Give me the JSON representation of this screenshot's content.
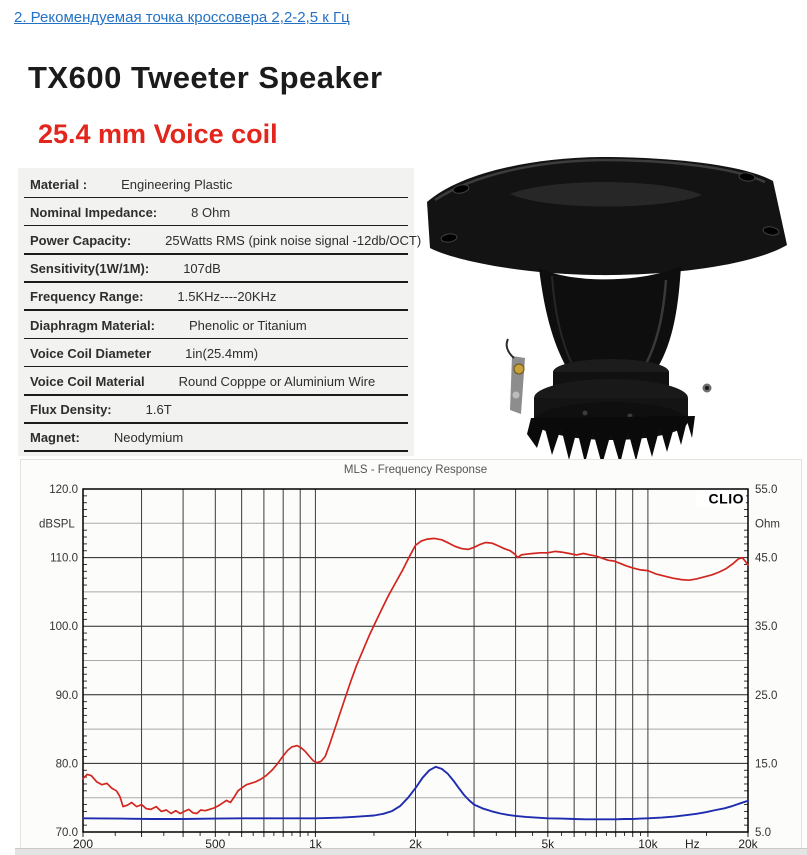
{
  "page": {
    "link": {
      "label": "2. Рекомендуемая точка кроссовера 2,2-2,5 к Гц",
      "color": "#2472c4"
    },
    "title": "TX600 Tweeter Speaker",
    "subtitle": {
      "text": "25.4 mm Voice coil",
      "color": "#e2261c"
    }
  },
  "specs": {
    "rows": [
      {
        "label": "Material :",
        "value": "Engineering Plastic"
      },
      {
        "label": "Nominal Impedance:",
        "value": "8 Ohm"
      },
      {
        "label": "Power Capacity:",
        "value": "25Watts RMS (pink noise signal -12db/OCT)"
      },
      {
        "label": "Sensitivity(1W/1M):",
        "value": "107dB"
      },
      {
        "label": "Frequency Range:",
        "value": "1.5KHz----20KHz"
      },
      {
        "label": "Diaphragm Material:",
        "value": "Phenolic or Titanium"
      },
      {
        "label": "Voice Coil Diameter",
        "value": "1in(25.4mm)"
      },
      {
        "label": "Voice Coil Material",
        "value": "Round Copppe or Aluminium Wire"
      },
      {
        "label": "Flux Density:",
        "value": "1.6T"
      },
      {
        "label": "Magnet:",
        "value": "Neodymium"
      }
    ]
  },
  "chart_data": {
    "type": "line",
    "title": "MLS - Frequency Response",
    "watermark": "CLIO",
    "x_axis": {
      "scale": "log",
      "min": 200,
      "max": 20000,
      "unit": "Hz",
      "ticks": [
        {
          "label": "200",
          "f": 200
        },
        {
          "label": "500",
          "f": 500
        },
        {
          "label": "1k",
          "f": 1000
        },
        {
          "label": "2k",
          "f": 2000
        },
        {
          "label": "5k",
          "f": 5000
        },
        {
          "label": "10k",
          "f": 10000
        },
        {
          "label": "Hz",
          "f": 13600
        },
        {
          "label": "20k",
          "f": 20000
        }
      ]
    },
    "left_axis": {
      "label": "dBSPL",
      "min": 70,
      "max": 120,
      "major_ticks": [
        {
          "label": "120.0",
          "v": 120
        },
        {
          "label": "110.0",
          "v": 110
        },
        {
          "label": "100.0",
          "v": 100
        },
        {
          "label": "90.0",
          "v": 90
        },
        {
          "label": "80.0",
          "v": 80
        },
        {
          "label": "70.0",
          "v": 70
        }
      ],
      "minor_grid": [
        115,
        105,
        95,
        85,
        75
      ],
      "unit_label_at": 115
    },
    "right_axis": {
      "label": "Ohm",
      "min": 5,
      "max": 55,
      "major_ticks": [
        {
          "label": "55.0",
          "v": 55
        },
        {
          "label": "45.0",
          "v": 45
        },
        {
          "label": "35.0",
          "v": 35
        },
        {
          "label": "25.0",
          "v": 25
        },
        {
          "label": "15.0",
          "v": 15
        },
        {
          "label": "5.0",
          "v": 5
        }
      ],
      "unit_label_at": 50
    },
    "grid_frequencies": [
      300,
      400,
      500,
      600,
      700,
      800,
      900,
      1000,
      2000,
      3000,
      4000,
      5000,
      6000,
      7000,
      8000,
      9000,
      10000
    ],
    "minor_tick_frequencies": [
      250,
      350,
      450,
      550,
      650,
      750,
      850,
      950,
      1500,
      2500,
      3500,
      4500,
      5500,
      6500,
      7500,
      8500,
      9500,
      15000
    ],
    "grid_color_major": "#222222",
    "grid_color_minor": "#a9a9a9",
    "grid_color_vertical": "#3c3c3c",
    "series": [
      {
        "name": "SPL",
        "unit": "dBSPL",
        "axis": "left",
        "color": "#d3251f",
        "width": 1.7,
        "points": [
          [
            200,
            77.8
          ],
          [
            206,
            78.4
          ],
          [
            212,
            78.2
          ],
          [
            220,
            77.3
          ],
          [
            228,
            76.9
          ],
          [
            236,
            77.1
          ],
          [
            244,
            76.4
          ],
          [
            252,
            76.0
          ],
          [
            258,
            75.2
          ],
          [
            264,
            73.7
          ],
          [
            272,
            73.9
          ],
          [
            280,
            74.3
          ],
          [
            290,
            73.7
          ],
          [
            300,
            74.0
          ],
          [
            310,
            73.4
          ],
          [
            320,
            73.3
          ],
          [
            332,
            73.7
          ],
          [
            344,
            73.0
          ],
          [
            356,
            73.2
          ],
          [
            368,
            72.7
          ],
          [
            380,
            73.1
          ],
          [
            392,
            72.7
          ],
          [
            404,
            73.0
          ],
          [
            416,
            73.3
          ],
          [
            428,
            72.8
          ],
          [
            440,
            72.7
          ],
          [
            452,
            73.2
          ],
          [
            466,
            73.1
          ],
          [
            480,
            73.3
          ],
          [
            495,
            73.5
          ],
          [
            510,
            73.8
          ],
          [
            525,
            74.2
          ],
          [
            540,
            74.6
          ],
          [
            555,
            74.3
          ],
          [
            570,
            75.1
          ],
          [
            585,
            76.0
          ],
          [
            600,
            76.4
          ],
          [
            620,
            76.9
          ],
          [
            640,
            77.1
          ],
          [
            660,
            77.3
          ],
          [
            685,
            77.7
          ],
          [
            710,
            78.2
          ],
          [
            740,
            79.0
          ],
          [
            770,
            80.0
          ],
          [
            800,
            81.1
          ],
          [
            825,
            81.9
          ],
          [
            850,
            82.4
          ],
          [
            880,
            82.6
          ],
          [
            905,
            82.3
          ],
          [
            930,
            81.8
          ],
          [
            960,
            81.0
          ],
          [
            985,
            80.4
          ],
          [
            1010,
            80.1
          ],
          [
            1040,
            80.3
          ],
          [
            1070,
            81.0
          ],
          [
            1100,
            82.6
          ],
          [
            1140,
            84.8
          ],
          [
            1180,
            87.0
          ],
          [
            1230,
            89.6
          ],
          [
            1280,
            92.1
          ],
          [
            1330,
            94.3
          ],
          [
            1390,
            96.5
          ],
          [
            1450,
            98.6
          ],
          [
            1510,
            100.4
          ],
          [
            1580,
            102.4
          ],
          [
            1660,
            104.5
          ],
          [
            1740,
            106.3
          ],
          [
            1830,
            108.2
          ],
          [
            1920,
            110.2
          ],
          [
            2000,
            111.8
          ],
          [
            2080,
            112.4
          ],
          [
            2170,
            112.7
          ],
          [
            2280,
            112.8
          ],
          [
            2400,
            112.6
          ],
          [
            2520,
            112.1
          ],
          [
            2640,
            111.6
          ],
          [
            2760,
            111.3
          ],
          [
            2880,
            111.2
          ],
          [
            3000,
            111.5
          ],
          [
            3120,
            111.9
          ],
          [
            3250,
            112.2
          ],
          [
            3400,
            112.1
          ],
          [
            3550,
            111.7
          ],
          [
            3700,
            111.3
          ],
          [
            3850,
            111.0
          ],
          [
            3980,
            110.5
          ],
          [
            4060,
            110.0
          ],
          [
            4160,
            110.4
          ],
          [
            4300,
            110.5
          ],
          [
            4500,
            110.6
          ],
          [
            4750,
            110.7
          ],
          [
            5000,
            110.7
          ],
          [
            5250,
            110.9
          ],
          [
            5500,
            110.8
          ],
          [
            5800,
            110.6
          ],
          [
            6100,
            110.4
          ],
          [
            6400,
            110.6
          ],
          [
            6700,
            110.4
          ],
          [
            7000,
            110.2
          ],
          [
            7300,
            109.9
          ],
          [
            7600,
            109.6
          ],
          [
            7900,
            109.5
          ],
          [
            8200,
            109.2
          ],
          [
            8600,
            108.8
          ],
          [
            9000,
            108.5
          ],
          [
            9500,
            108.2
          ],
          [
            10000,
            108.1
          ],
          [
            10600,
            107.6
          ],
          [
            11200,
            107.3
          ],
          [
            11900,
            107.0
          ],
          [
            12600,
            106.8
          ],
          [
            13300,
            106.7
          ],
          [
            14000,
            106.9
          ],
          [
            14800,
            107.2
          ],
          [
            15600,
            107.5
          ],
          [
            16400,
            107.9
          ],
          [
            17200,
            108.4
          ],
          [
            18000,
            109.1
          ],
          [
            18700,
            109.8
          ],
          [
            19200,
            110.0
          ],
          [
            19600,
            109.5
          ],
          [
            20000,
            108.9
          ]
        ]
      },
      {
        "name": "Impedance",
        "unit": "Ohm",
        "axis": "right",
        "color": "#1f2cb0",
        "width": 1.9,
        "points": [
          [
            200,
            7.0
          ],
          [
            260,
            6.95
          ],
          [
            320,
            6.9
          ],
          [
            400,
            6.9
          ],
          [
            500,
            6.95
          ],
          [
            600,
            7.0
          ],
          [
            700,
            7.0
          ],
          [
            800,
            7.0
          ],
          [
            900,
            7.0
          ],
          [
            1000,
            7.0
          ],
          [
            1100,
            7.05
          ],
          [
            1200,
            7.1
          ],
          [
            1300,
            7.2
          ],
          [
            1400,
            7.3
          ],
          [
            1500,
            7.4
          ],
          [
            1600,
            7.65
          ],
          [
            1700,
            8.05
          ],
          [
            1800,
            8.8
          ],
          [
            1900,
            10.0
          ],
          [
            2000,
            11.4
          ],
          [
            2100,
            12.9
          ],
          [
            2200,
            14.0
          ],
          [
            2300,
            14.5
          ],
          [
            2400,
            14.2
          ],
          [
            2500,
            13.5
          ],
          [
            2600,
            12.5
          ],
          [
            2700,
            11.4
          ],
          [
            2800,
            10.4
          ],
          [
            2900,
            9.6
          ],
          [
            3000,
            9.0
          ],
          [
            3200,
            8.4
          ],
          [
            3400,
            8.0
          ],
          [
            3600,
            7.7
          ],
          [
            3800,
            7.5
          ],
          [
            4000,
            7.35
          ],
          [
            4300,
            7.2
          ],
          [
            4600,
            7.1
          ],
          [
            5000,
            7.0
          ],
          [
            5500,
            6.95
          ],
          [
            6000,
            6.9
          ],
          [
            6500,
            6.85
          ],
          [
            7000,
            6.85
          ],
          [
            7500,
            6.85
          ],
          [
            8000,
            6.85
          ],
          [
            8500,
            6.9
          ],
          [
            9000,
            6.9
          ],
          [
            9500,
            6.95
          ],
          [
            10000,
            7.0
          ],
          [
            11000,
            7.1
          ],
          [
            12000,
            7.25
          ],
          [
            13000,
            7.45
          ],
          [
            14000,
            7.65
          ],
          [
            15000,
            7.9
          ],
          [
            16000,
            8.2
          ],
          [
            17000,
            8.45
          ],
          [
            18000,
            8.8
          ],
          [
            19000,
            9.2
          ],
          [
            20000,
            9.55
          ]
        ]
      }
    ]
  }
}
